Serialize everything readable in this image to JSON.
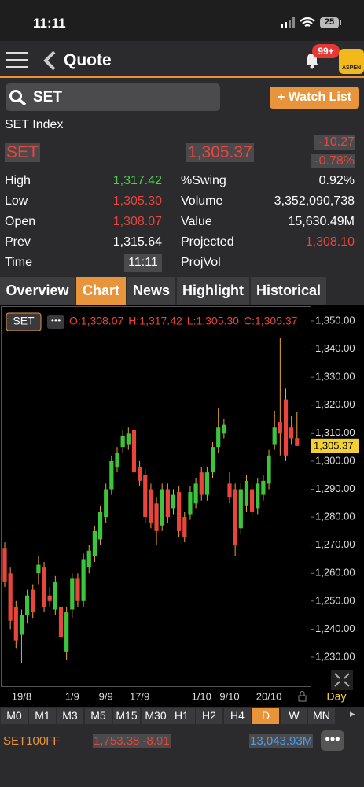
{
  "status_bar": {
    "time": "11:11",
    "battery": "25"
  },
  "nav": {
    "title": "Quote",
    "badge": "99+",
    "logo": "ASPEN"
  },
  "search": {
    "query": "SET",
    "button": "+ Watch List"
  },
  "quote": {
    "name": "SET Index",
    "symbol": "SET",
    "price": "1,305.37",
    "change": "-10.27",
    "change_percent": "-0.78%"
  },
  "stats": {
    "rows": [
      [
        "High",
        "1,317.42",
        "%Swing",
        "0.92%"
      ],
      [
        "Low",
        "1,305.30",
        "Volume",
        "3,352,090,738"
      ],
      [
        "Open",
        "1,308.07",
        "Value",
        "15,630.49M"
      ],
      [
        "Prev",
        "1,315.64",
        "Projected",
        "1,308.10"
      ],
      [
        "Time",
        "11:11",
        "ProjVol"
      ]
    ]
  },
  "tabs": {
    "items": [
      "Overview",
      "Chart",
      "News",
      "Highlight",
      "Historical"
    ],
    "active": 1
  },
  "chart_data": {
    "type": "candlestick",
    "symbol": "SET",
    "ohlc_legend": [
      "O:1,308.07",
      "H:1,317.42",
      "L:1,305.30",
      "C:1,305.37"
    ],
    "period": "Day",
    "categories": [
      null,
      null,
      null,
      "19/8",
      null,
      null,
      null,
      null,
      null,
      null,
      null,
      null,
      "1/9",
      null,
      null,
      null,
      null,
      null,
      "9/9",
      null,
      null,
      null,
      null,
      null,
      "17/9",
      null,
      null,
      null,
      null,
      null,
      null,
      null,
      null,
      null,
      null,
      "1/10",
      null,
      null,
      null,
      null,
      "9/10",
      null,
      null,
      null,
      null,
      null,
      null,
      "20/10",
      null,
      null,
      null,
      null,
      null
    ],
    "open": [
      1269,
      1260,
      1248,
      1238,
      1245,
      1254,
      1260,
      1262,
      1252,
      1247,
      1248,
      1232,
      1247,
      1258,
      1250,
      1262,
      1266,
      1272,
      1280,
      1290,
      1298,
      1305,
      1306,
      1311,
      1298,
      1295,
      1290,
      1285,
      1277,
      1290,
      1283,
      1289,
      1280,
      1281,
      1285,
      1296,
      1288,
      1296,
      1305,
      1310,
      1292,
      1290,
      1276,
      1284,
      1290,
      1283,
      1288,
      1292,
      1306,
      1314,
      1322,
      1312,
      1308.07
    ],
    "high": [
      1271,
      1262,
      1250,
      1247,
      1254,
      1256,
      1266,
      1264,
      1255,
      1259,
      1251,
      1248,
      1260,
      1260,
      1267,
      1270,
      1277,
      1284,
      1292,
      1302,
      1305,
      1311,
      1312,
      1313,
      1300,
      1297,
      1292,
      1287,
      1292,
      1292,
      1290,
      1291,
      1282,
      1291,
      1294,
      1298,
      1298,
      1307,
      1319,
      1315,
      1296,
      1292,
      1292,
      1295,
      1292,
      1294,
      1295,
      1304,
      1318,
      1344,
      1326,
      1316,
      1317.42
    ],
    "low": [
      1255,
      1240,
      1233,
      1228,
      1242,
      1244,
      1256,
      1246,
      1248,
      1245,
      1235,
      1229,
      1244,
      1248,
      1248,
      1260,
      1264,
      1270,
      1278,
      1288,
      1296,
      1303,
      1304,
      1294,
      1291,
      1278,
      1276,
      1270,
      1275,
      1278,
      1281,
      1273,
      1271,
      1279,
      1283,
      1286,
      1286,
      1294,
      1303,
      1308,
      1285,
      1266,
      1274,
      1282,
      1280,
      1281,
      1286,
      1290,
      1304,
      1302,
      1300,
      1306,
      1305.3
    ],
    "close": [
      1257,
      1243,
      1236,
      1245,
      1252,
      1246,
      1263,
      1248,
      1250,
      1257,
      1237,
      1246,
      1258,
      1250,
      1265,
      1268,
      1275,
      1282,
      1290,
      1300,
      1303,
      1309,
      1310,
      1296,
      1293,
      1280,
      1278,
      1275,
      1290,
      1280,
      1288,
      1275,
      1273,
      1289,
      1292,
      1288,
      1296,
      1305,
      1312,
      1313,
      1287,
      1270,
      1290,
      1293,
      1282,
      1292,
      1293,
      1302,
      1312,
      1310,
      1302,
      1308,
      1305.37
    ],
    "up_color": "#3cc43c",
    "down_color": "#e8453c",
    "ylim": [
      1219.6,
      1354.5
    ],
    "yticks": [
      {
        "value": 1230,
        "label": "1,230.00"
      },
      {
        "value": 1240,
        "label": "1,240.00"
      },
      {
        "value": 1250,
        "label": "1,250.00"
      },
      {
        "value": 1260,
        "label": "1,260.00"
      },
      {
        "value": 1270,
        "label": "1,270.00"
      },
      {
        "value": 1280,
        "label": "1,280.00"
      },
      {
        "value": 1290,
        "label": "1,290.00"
      },
      {
        "value": 1300,
        "label": "1,300.00"
      },
      {
        "value": 1310,
        "label": "1,310.00"
      },
      {
        "value": 1320,
        "label": "1,320.00"
      },
      {
        "value": 1330,
        "label": "1,330.00"
      },
      {
        "value": 1340,
        "label": "1,340.00"
      },
      {
        "value": 1350,
        "label": "1,350.00"
      }
    ],
    "last_price": {
      "value": 1305.37,
      "label": "1,305.37"
    }
  },
  "timeframes": {
    "items": [
      "M0",
      "M1",
      "M3",
      "M5",
      "M15",
      "M30",
      "H1",
      "H2",
      "H4",
      "D",
      "W",
      "MN"
    ],
    "active": 9
  },
  "ticker": {
    "symbol": "SET100FF",
    "price": "1,753.38 -8.91",
    "volume": "13,043.93M"
  }
}
